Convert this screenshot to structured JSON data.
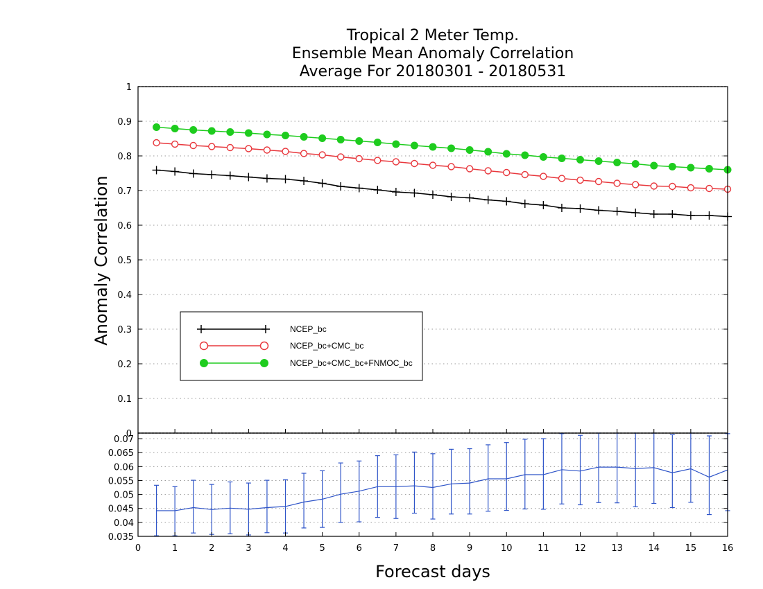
{
  "chart_data": [
    {
      "type": "line",
      "title": [
        "Tropical 2 Meter Temp.",
        "Ensemble Mean Anomaly Correlation",
        "Average For 20180301 - 20180531"
      ],
      "xlabel": "Forecast days",
      "ylabel": "Anomaly Correlation",
      "xlim": [
        0,
        16
      ],
      "ylim": [
        0,
        1
      ],
      "xticks": [
        "0",
        "1",
        "2",
        "3",
        "4",
        "5",
        "6",
        "7",
        "8",
        "9",
        "10",
        "11",
        "12",
        "13",
        "14",
        "15",
        "16"
      ],
      "yticks": [
        "0",
        "0.1",
        "0.2",
        "0.3",
        "0.4",
        "0.5",
        "0.6",
        "0.7",
        "0.8",
        "0.9",
        "1"
      ],
      "grid": true,
      "legend_position": "left-middle",
      "x": [
        0.5,
        1,
        1.5,
        2,
        2.5,
        3,
        3.5,
        4,
        4.5,
        5,
        5.5,
        6,
        6.5,
        7,
        7.5,
        8,
        8.5,
        9,
        9.5,
        10,
        10.5,
        11,
        11.5,
        12,
        12.5,
        13,
        13.5,
        14,
        14.5,
        15,
        15.5,
        16
      ],
      "series": [
        {
          "name": "NCEP_bc",
          "color": "#000000",
          "marker": "plus",
          "values": [
            0.759,
            0.755,
            0.749,
            0.746,
            0.743,
            0.739,
            0.735,
            0.733,
            0.728,
            0.721,
            0.712,
            0.707,
            0.702,
            0.696,
            0.693,
            0.688,
            0.682,
            0.679,
            0.673,
            0.669,
            0.662,
            0.658,
            0.65,
            0.648,
            0.643,
            0.64,
            0.636,
            0.632,
            0.632,
            0.628,
            0.628,
            0.625
          ]
        },
        {
          "name": "NCEP_bc+CMC_bc",
          "color": "#e8383d",
          "marker": "open-circle",
          "values": [
            0.838,
            0.834,
            0.83,
            0.827,
            0.824,
            0.821,
            0.817,
            0.813,
            0.807,
            0.803,
            0.797,
            0.792,
            0.787,
            0.783,
            0.778,
            0.773,
            0.769,
            0.763,
            0.757,
            0.752,
            0.746,
            0.741,
            0.735,
            0.73,
            0.726,
            0.721,
            0.717,
            0.713,
            0.712,
            0.708,
            0.706,
            0.704
          ]
        },
        {
          "name": "NCEP_bc+CMC_bc+FNMOC_bc",
          "color": "#1ecc1e",
          "marker": "filled-circle",
          "values": [
            0.883,
            0.879,
            0.875,
            0.872,
            0.869,
            0.866,
            0.862,
            0.859,
            0.855,
            0.851,
            0.847,
            0.843,
            0.839,
            0.834,
            0.83,
            0.826,
            0.822,
            0.817,
            0.812,
            0.806,
            0.802,
            0.797,
            0.793,
            0.789,
            0.785,
            0.781,
            0.777,
            0.772,
            0.769,
            0.766,
            0.763,
            0.76
          ]
        }
      ]
    },
    {
      "type": "line",
      "xlim": [
        0,
        16
      ],
      "ylim": [
        0.035,
        0.072
      ],
      "xticks": [
        "0",
        "1",
        "2",
        "3",
        "4",
        "5",
        "6",
        "7",
        "8",
        "9",
        "10",
        "11",
        "12",
        "13",
        "14",
        "15",
        "16"
      ],
      "yticks": [
        "0.035",
        "0.04",
        "0.045",
        "0.05",
        "0.055",
        "0.06",
        "0.065",
        "0.07"
      ],
      "grid": true,
      "x": [
        0.5,
        1,
        1.5,
        2,
        2.5,
        3,
        3.5,
        4,
        4.5,
        5,
        5.5,
        6,
        6.5,
        7,
        7.5,
        8,
        8.5,
        9,
        9.5,
        10,
        10.5,
        11,
        11.5,
        12,
        12.5,
        13,
        13.5,
        14,
        14.5,
        15,
        15.5,
        16
      ],
      "series": [
        {
          "color": "#2e54c8",
          "values": [
            0.0442,
            0.0442,
            0.0453,
            0.0446,
            0.0451,
            0.0447,
            0.0453,
            0.0457,
            0.0473,
            0.0483,
            0.0501,
            0.0512,
            0.0528,
            0.0528,
            0.0531,
            0.0525,
            0.0538,
            0.0541,
            0.0556,
            0.0556,
            0.0571,
            0.0571,
            0.0589,
            0.0584,
            0.0598,
            0.0598,
            0.0593,
            0.0596,
            0.0578,
            0.0592,
            0.0562,
            0.0588
          ],
          "error_low": [
            0.0352,
            0.0352,
            0.0362,
            0.0357,
            0.0359,
            0.0355,
            0.0363,
            0.0362,
            0.038,
            0.0382,
            0.04,
            0.0402,
            0.0418,
            0.0414,
            0.0433,
            0.0412,
            0.043,
            0.043,
            0.044,
            0.0443,
            0.0448,
            0.0447,
            0.0466,
            0.0463,
            0.0471,
            0.047,
            0.0456,
            0.0468,
            0.0453,
            0.0472,
            0.0428,
            0.0442
          ],
          "error_high": [
            0.0533,
            0.0528,
            0.0551,
            0.0536,
            0.0545,
            0.0541,
            0.0551,
            0.0553,
            0.0576,
            0.0585,
            0.0613,
            0.062,
            0.0639,
            0.0642,
            0.0652,
            0.0646,
            0.0662,
            0.0664,
            0.0678,
            0.0686,
            0.0698,
            0.07,
            0.0718,
            0.0712,
            0.0725,
            0.0724,
            0.0721,
            0.0725,
            0.0714,
            0.0721,
            0.071,
            0.0718
          ]
        }
      ]
    }
  ]
}
